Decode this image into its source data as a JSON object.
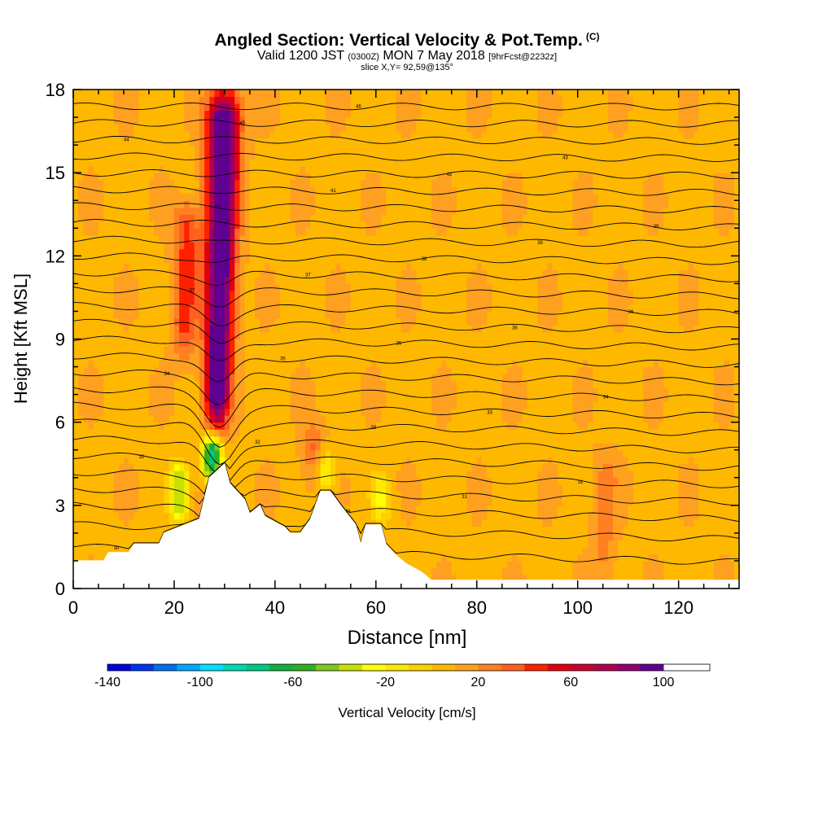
{
  "chart_data": {
    "type": "heatmap",
    "title_main": "Angled Section: Vertical Velocity & Pot.Temp.",
    "title_unit": "(C)",
    "subtitle_valid": "Valid 1200 JST",
    "subtitle_utc": "(0300Z)",
    "subtitle_date": "MON 7 May 2018",
    "subtitle_fcst": "[9hrFcst@2232z]",
    "slice_label": "slice X,Y= 92,59@135°",
    "xlabel": "Distance [nm]",
    "ylabel": "Height [Kft MSL]",
    "xlim": [
      0,
      132
    ],
    "ylim": [
      0,
      18
    ],
    "x_ticks": [
      "0",
      "20",
      "40",
      "60",
      "80",
      "100",
      "120"
    ],
    "x_tick_values": [
      0,
      20,
      40,
      60,
      80,
      100,
      120
    ],
    "y_ticks": [
      "0",
      "3",
      "6",
      "9",
      "12",
      "15",
      "18"
    ],
    "y_tick_values": [
      0,
      3,
      6,
      9,
      12,
      15,
      18
    ],
    "colorbar": {
      "label": "Vertical Velocity [cm/s]",
      "min": -140,
      "max": 120,
      "step": 10,
      "tick_labels": [
        "-140",
        "-100",
        "-60",
        "-20",
        "20",
        "60",
        "100"
      ],
      "tick_values": [
        -140,
        -100,
        -60,
        -20,
        20,
        60,
        100
      ],
      "colors": [
        "#0000dd",
        "#0033ee",
        "#0070ee",
        "#00a8ff",
        "#00e0ff",
        "#00d8b0",
        "#00c880",
        "#10b040",
        "#30b020",
        "#80c820",
        "#c8e000",
        "#ffff00",
        "#ffe800",
        "#ffd000",
        "#ffb800",
        "#ffa020",
        "#ff8020",
        "#ff6020",
        "#ff2000",
        "#e00010",
        "#c80030",
        "#b00050",
        "#900070",
        "#600090"
      ]
    },
    "background_velocity": 8,
    "plumes": [
      {
        "x": 28.5,
        "y_bottom": 6.0,
        "y_top": 18.0,
        "peak": 120,
        "note": "strong updraft"
      },
      {
        "x": 22.0,
        "y_bottom": 8.5,
        "y_top": 14.0,
        "peak": 45
      },
      {
        "x": 47.5,
        "y_bottom": 4.0,
        "y_top": 6.0,
        "peak": 35
      },
      {
        "x": 105.0,
        "y_bottom": 0.5,
        "y_top": 5.0,
        "peak": 25
      }
    ],
    "downdrafts": [
      {
        "x": 21.0,
        "y_bottom": 2.5,
        "y_top": 4.5,
        "peak": -40
      },
      {
        "x": 27.5,
        "y_bottom": 4.0,
        "y_top": 5.5,
        "peak": -80
      },
      {
        "x": 50.0,
        "y_bottom": 3.5,
        "y_top": 5.0,
        "peak": -25
      },
      {
        "x": 61.0,
        "y_bottom": 2.5,
        "y_top": 4.0,
        "peak": -20
      }
    ],
    "terrain": [
      {
        "x": 0,
        "h": 1.0
      },
      {
        "x": 6,
        "h": 1.0
      },
      {
        "x": 7,
        "h": 1.3
      },
      {
        "x": 11,
        "h": 1.3
      },
      {
        "x": 12,
        "h": 1.6
      },
      {
        "x": 17,
        "h": 1.6
      },
      {
        "x": 18,
        "h": 2.0
      },
      {
        "x": 25,
        "h": 2.5
      },
      {
        "x": 27,
        "h": 4.0
      },
      {
        "x": 30,
        "h": 4.5
      },
      {
        "x": 31,
        "h": 3.8
      },
      {
        "x": 34,
        "h": 3.2
      },
      {
        "x": 35,
        "h": 2.7
      },
      {
        "x": 37,
        "h": 3.0
      },
      {
        "x": 38,
        "h": 2.6
      },
      {
        "x": 42,
        "h": 2.2
      },
      {
        "x": 43,
        "h": 2.0
      },
      {
        "x": 45,
        "h": 2.0
      },
      {
        "x": 47,
        "h": 2.5
      },
      {
        "x": 49,
        "h": 3.5
      },
      {
        "x": 51,
        "h": 3.5
      },
      {
        "x": 53,
        "h": 3.0
      },
      {
        "x": 56,
        "h": 2.3
      },
      {
        "x": 57,
        "h": 1.6
      },
      {
        "x": 58,
        "h": 2.3
      },
      {
        "x": 61,
        "h": 2.3
      },
      {
        "x": 62,
        "h": 1.6
      },
      {
        "x": 64,
        "h": 1.2
      },
      {
        "x": 66,
        "h": 0.9
      },
      {
        "x": 69,
        "h": 0.6
      },
      {
        "x": 71,
        "h": 0.3
      },
      {
        "x": 132,
        "h": 0.3
      }
    ],
    "theta_isolines": [
      {
        "label": "30",
        "h_left": 1.5
      },
      {
        "label": "31",
        "h_left": 2.3
      },
      {
        "label": "31",
        "h_left": 3.0
      },
      {
        "label": "31",
        "h_left": 3.6
      },
      {
        "label": "31",
        "h_left": 4.2
      },
      {
        "label": "32",
        "h_left": 4.8
      },
      {
        "label": "32",
        "h_left": 5.4
      },
      {
        "label": "33",
        "h_left": 6.0
      },
      {
        "label": "33",
        "h_left": 6.6
      },
      {
        "label": "34",
        "h_left": 7.2
      },
      {
        "label": "34",
        "h_left": 7.8
      },
      {
        "label": "35",
        "h_left": 8.4
      },
      {
        "label": "35",
        "h_left": 9.0
      },
      {
        "label": "36",
        "h_left": 9.6
      },
      {
        "label": "36",
        "h_left": 10.2
      },
      {
        "label": "37",
        "h_left": 10.8
      },
      {
        "label": "37",
        "h_left": 11.4
      },
      {
        "label": "38",
        "h_left": 12.0
      },
      {
        "label": "38",
        "h_left": 12.6
      },
      {
        "label": "39",
        "h_left": 13.2
      },
      {
        "label": "40",
        "h_left": 13.8
      },
      {
        "label": "41",
        "h_left": 14.4
      },
      {
        "label": "42",
        "h_left": 15.0
      },
      {
        "label": "43",
        "h_left": 15.6
      },
      {
        "label": "44",
        "h_left": 16.2
      },
      {
        "label": "45",
        "h_left": 16.8
      },
      {
        "label": "46",
        "h_left": 17.4
      }
    ]
  }
}
